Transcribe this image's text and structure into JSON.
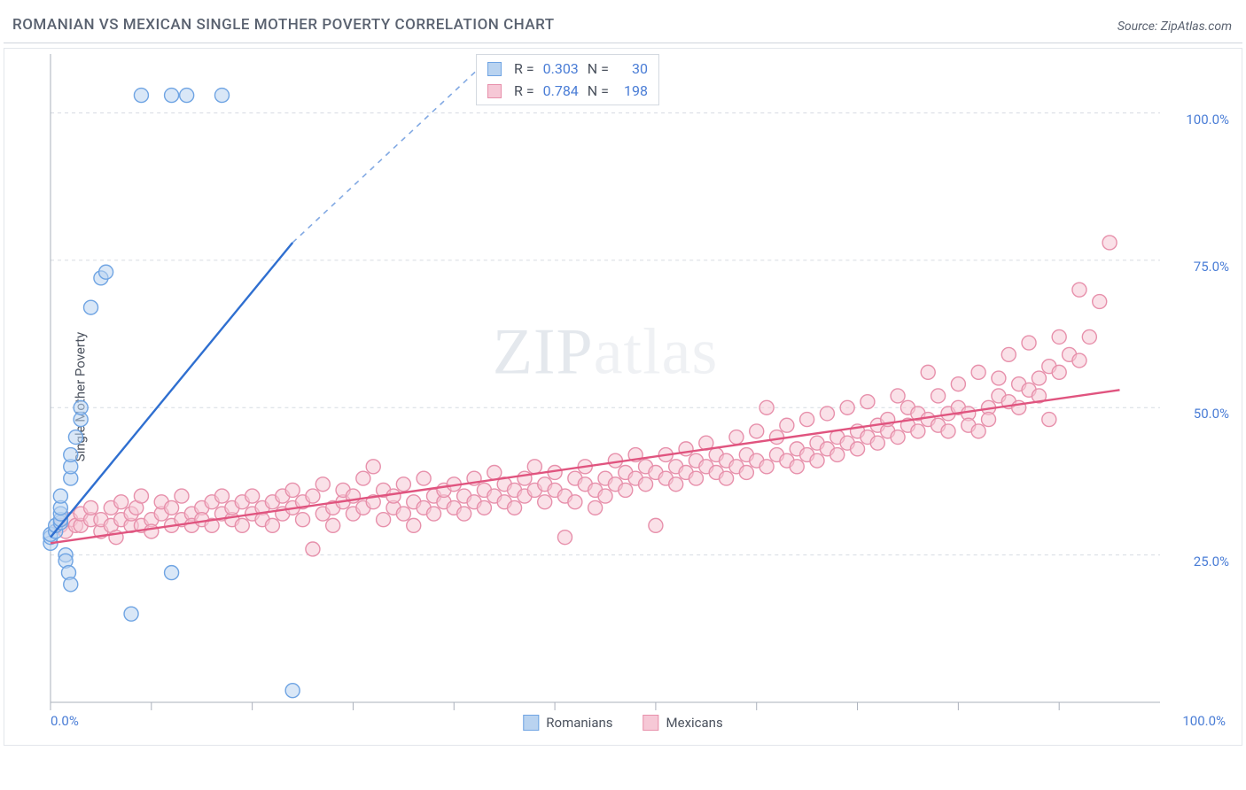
{
  "header": {
    "title": "ROMANIAN VS MEXICAN SINGLE MOTHER POVERTY CORRELATION CHART",
    "source": "Source: ZipAtlas.com"
  },
  "chart": {
    "type": "scatter",
    "ylabel": "Single Mother Poverty",
    "xlim": [
      0,
      110
    ],
    "ylim": [
      0,
      110
    ],
    "background_color": "#ffffff",
    "grid_color": "#d6dbe2",
    "axis_color": "#aab0bb",
    "tick_color": "#aab0bb",
    "label_color": "#4a7dd6",
    "y_gridlines": [
      25,
      50,
      75,
      100
    ],
    "y_tick_labels": [
      "25.0%",
      "50.0%",
      "75.0%",
      "100.0%"
    ],
    "x_ticks": [
      0,
      10,
      20,
      30,
      40,
      50,
      60,
      70,
      80,
      90,
      100
    ],
    "x_origin_label": "0.0%",
    "x_max_label": "100.0%",
    "marker_radius": 8,
    "marker_stroke_width": 1.4,
    "trend_line_width": 2.4,
    "watermark": {
      "zip": "ZIP",
      "atlas": "atlas"
    },
    "series": [
      {
        "key": "romanians",
        "label": "Romanians",
        "fill": "#b9d3f0",
        "stroke": "#6fa4e3",
        "line_color": "#2f6fd0",
        "R": "0.303",
        "N": "30",
        "trend": {
          "x1": 0,
          "y1": 28,
          "x2": 24,
          "y2": 78,
          "dash_x2": 44,
          "dash_y2": 110
        },
        "points": [
          [
            0,
            27
          ],
          [
            0,
            28
          ],
          [
            0,
            28.5
          ],
          [
            0.5,
            29
          ],
          [
            0.5,
            30
          ],
          [
            1,
            30.5
          ],
          [
            1,
            31
          ],
          [
            1,
            32
          ],
          [
            1,
            33
          ],
          [
            1,
            35
          ],
          [
            1.5,
            25
          ],
          [
            1.5,
            24
          ],
          [
            1.8,
            22
          ],
          [
            2,
            20
          ],
          [
            2,
            38
          ],
          [
            2,
            40
          ],
          [
            2,
            42
          ],
          [
            2.5,
            45
          ],
          [
            3,
            48
          ],
          [
            3,
            50
          ],
          [
            4,
            67
          ],
          [
            5,
            72
          ],
          [
            5.5,
            73
          ],
          [
            8,
            15
          ],
          [
            9,
            103
          ],
          [
            12,
            103
          ],
          [
            13.5,
            103
          ],
          [
            17,
            103
          ],
          [
            12,
            22
          ],
          [
            24,
            2
          ]
        ]
      },
      {
        "key": "mexicans",
        "label": "Mexicans",
        "fill": "#f6c8d6",
        "stroke": "#e790ab",
        "line_color": "#e0547f",
        "R": "0.784",
        "N": "198",
        "trend": {
          "x1": 0,
          "y1": 27,
          "x2": 106,
          "y2": 53
        },
        "points": [
          [
            1,
            30
          ],
          [
            1.5,
            29
          ],
          [
            2,
            31
          ],
          [
            2.5,
            30
          ],
          [
            3,
            30
          ],
          [
            3,
            32
          ],
          [
            4,
            31
          ],
          [
            4,
            33
          ],
          [
            5,
            29
          ],
          [
            5,
            31
          ],
          [
            6,
            30
          ],
          [
            6,
            33
          ],
          [
            6.5,
            28
          ],
          [
            7,
            31
          ],
          [
            7,
            34
          ],
          [
            8,
            30
          ],
          [
            8,
            32
          ],
          [
            8.5,
            33
          ],
          [
            9,
            30
          ],
          [
            9,
            35
          ],
          [
            10,
            31
          ],
          [
            10,
            29
          ],
          [
            11,
            32
          ],
          [
            11,
            34
          ],
          [
            12,
            30
          ],
          [
            12,
            33
          ],
          [
            13,
            31
          ],
          [
            13,
            35
          ],
          [
            14,
            32
          ],
          [
            14,
            30
          ],
          [
            15,
            33
          ],
          [
            15,
            31
          ],
          [
            16,
            34
          ],
          [
            16,
            30
          ],
          [
            17,
            32
          ],
          [
            17,
            35
          ],
          [
            18,
            31
          ],
          [
            18,
            33
          ],
          [
            19,
            34
          ],
          [
            19,
            30
          ],
          [
            20,
            32
          ],
          [
            20,
            35
          ],
          [
            21,
            33
          ],
          [
            21,
            31
          ],
          [
            22,
            34
          ],
          [
            22,
            30
          ],
          [
            23,
            32
          ],
          [
            23,
            35
          ],
          [
            24,
            33
          ],
          [
            24,
            36
          ],
          [
            25,
            31
          ],
          [
            25,
            34
          ],
          [
            26,
            26
          ],
          [
            26,
            35
          ],
          [
            27,
            32
          ],
          [
            27,
            37
          ],
          [
            28,
            33
          ],
          [
            28,
            30
          ],
          [
            29,
            34
          ],
          [
            29,
            36
          ],
          [
            30,
            32
          ],
          [
            30,
            35
          ],
          [
            31,
            33
          ],
          [
            31,
            38
          ],
          [
            32,
            40
          ],
          [
            32,
            34
          ],
          [
            33,
            31
          ],
          [
            33,
            36
          ],
          [
            34,
            33
          ],
          [
            34,
            35
          ],
          [
            35,
            32
          ],
          [
            35,
            37
          ],
          [
            36,
            34
          ],
          [
            36,
            30
          ],
          [
            37,
            33
          ],
          [
            37,
            38
          ],
          [
            38,
            35
          ],
          [
            38,
            32
          ],
          [
            39,
            34
          ],
          [
            39,
            36
          ],
          [
            40,
            33
          ],
          [
            40,
            37
          ],
          [
            41,
            35
          ],
          [
            41,
            32
          ],
          [
            42,
            34
          ],
          [
            42,
            38
          ],
          [
            43,
            36
          ],
          [
            43,
            33
          ],
          [
            44,
            35
          ],
          [
            44,
            39
          ],
          [
            45,
            34
          ],
          [
            45,
            37
          ],
          [
            46,
            36
          ],
          [
            46,
            33
          ],
          [
            47,
            35
          ],
          [
            47,
            38
          ],
          [
            48,
            36
          ],
          [
            48,
            40
          ],
          [
            49,
            34
          ],
          [
            49,
            37
          ],
          [
            50,
            36
          ],
          [
            50,
            39
          ],
          [
            51,
            35
          ],
          [
            51,
            28
          ],
          [
            52,
            38
          ],
          [
            52,
            34
          ],
          [
            53,
            37
          ],
          [
            53,
            40
          ],
          [
            54,
            36
          ],
          [
            54,
            33
          ],
          [
            55,
            38
          ],
          [
            55,
            35
          ],
          [
            56,
            37
          ],
          [
            56,
            41
          ],
          [
            57,
            36
          ],
          [
            57,
            39
          ],
          [
            58,
            38
          ],
          [
            58,
            42
          ],
          [
            59,
            37
          ],
          [
            59,
            40
          ],
          [
            60,
            39
          ],
          [
            60,
            30
          ],
          [
            61,
            38
          ],
          [
            61,
            42
          ],
          [
            62,
            40
          ],
          [
            62,
            37
          ],
          [
            63,
            39
          ],
          [
            63,
            43
          ],
          [
            64,
            41
          ],
          [
            64,
            38
          ],
          [
            65,
            40
          ],
          [
            65,
            44
          ],
          [
            66,
            39
          ],
          [
            66,
            42
          ],
          [
            67,
            41
          ],
          [
            67,
            38
          ],
          [
            68,
            40
          ],
          [
            68,
            45
          ],
          [
            69,
            42
          ],
          [
            69,
            39
          ],
          [
            70,
            41
          ],
          [
            70,
            46
          ],
          [
            71,
            40
          ],
          [
            71,
            50
          ],
          [
            72,
            42
          ],
          [
            72,
            45
          ],
          [
            73,
            41
          ],
          [
            73,
            47
          ],
          [
            74,
            43
          ],
          [
            74,
            40
          ],
          [
            75,
            42
          ],
          [
            75,
            48
          ],
          [
            76,
            44
          ],
          [
            76,
            41
          ],
          [
            77,
            43
          ],
          [
            77,
            49
          ],
          [
            78,
            45
          ],
          [
            78,
            42
          ],
          [
            79,
            44
          ],
          [
            79,
            50
          ],
          [
            80,
            46
          ],
          [
            80,
            43
          ],
          [
            81,
            45
          ],
          [
            81,
            51
          ],
          [
            82,
            47
          ],
          [
            82,
            44
          ],
          [
            83,
            46
          ],
          [
            83,
            48
          ],
          [
            84,
            45
          ],
          [
            84,
            52
          ],
          [
            85,
            47
          ],
          [
            85,
            50
          ],
          [
            86,
            46
          ],
          [
            86,
            49
          ],
          [
            87,
            48
          ],
          [
            87,
            56
          ],
          [
            88,
            47
          ],
          [
            88,
            52
          ],
          [
            89,
            49
          ],
          [
            89,
            46
          ],
          [
            90,
            50
          ],
          [
            90,
            54
          ],
          [
            91,
            49
          ],
          [
            91,
            47
          ],
          [
            92,
            46
          ],
          [
            92,
            56
          ],
          [
            93,
            50
          ],
          [
            93,
            48
          ],
          [
            94,
            52
          ],
          [
            94,
            55
          ],
          [
            95,
            51
          ],
          [
            95,
            59
          ],
          [
            96,
            54
          ],
          [
            96,
            50
          ],
          [
            97,
            53
          ],
          [
            97,
            61
          ],
          [
            98,
            55
          ],
          [
            98,
            52
          ],
          [
            99,
            57
          ],
          [
            99,
            48
          ],
          [
            100,
            56
          ],
          [
            100,
            62
          ],
          [
            101,
            59
          ],
          [
            102,
            58
          ],
          [
            102,
            70
          ],
          [
            103,
            62
          ],
          [
            104,
            68
          ],
          [
            105,
            78
          ]
        ]
      }
    ],
    "bottom_legend": [
      {
        "label": "Romanians",
        "fill": "#b9d3f0",
        "stroke": "#6fa4e3"
      },
      {
        "label": "Mexicans",
        "fill": "#f6c8d6",
        "stroke": "#e790ab"
      }
    ]
  }
}
